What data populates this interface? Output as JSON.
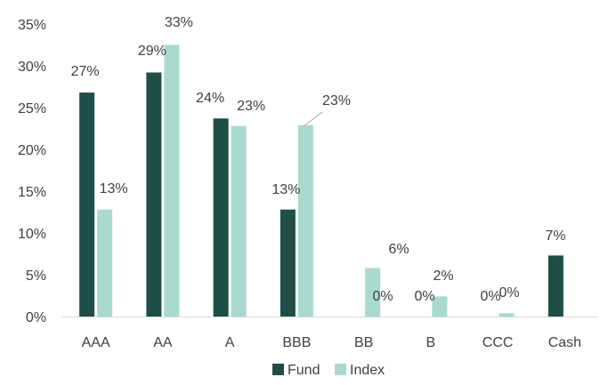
{
  "chart_data": {
    "type": "bar",
    "categories": [
      "AAA",
      "AA",
      "A",
      "BBB",
      "BB",
      "B",
      "CCC",
      "Cash"
    ],
    "series": [
      {
        "name": "Fund",
        "values": [
          26.8,
          29.2,
          23.7,
          12.8,
          0,
          0,
          0,
          7.3
        ],
        "labels": [
          "27%",
          "29%",
          "24%",
          "13%",
          "0%",
          "0%",
          "0%",
          "7%"
        ]
      },
      {
        "name": "Index",
        "values": [
          12.8,
          32.5,
          22.8,
          22.9,
          5.8,
          2.4,
          0.4,
          null
        ],
        "labels": [
          "13%",
          "33%",
          "23%",
          "23%",
          "6%",
          "2%",
          "0%",
          ""
        ]
      }
    ],
    "y_ticks": [
      "0%",
      "5%",
      "10%",
      "15%",
      "20%",
      "25%",
      "30%",
      "35%"
    ],
    "ylim": [
      0,
      35
    ],
    "grid": false,
    "legend": "bottom-center",
    "colors": {
      "Fund": "#1f4e46",
      "Index": "#a9d9cf",
      "axis": "#d9d9d9",
      "leader": "#a6a6a6"
    }
  }
}
